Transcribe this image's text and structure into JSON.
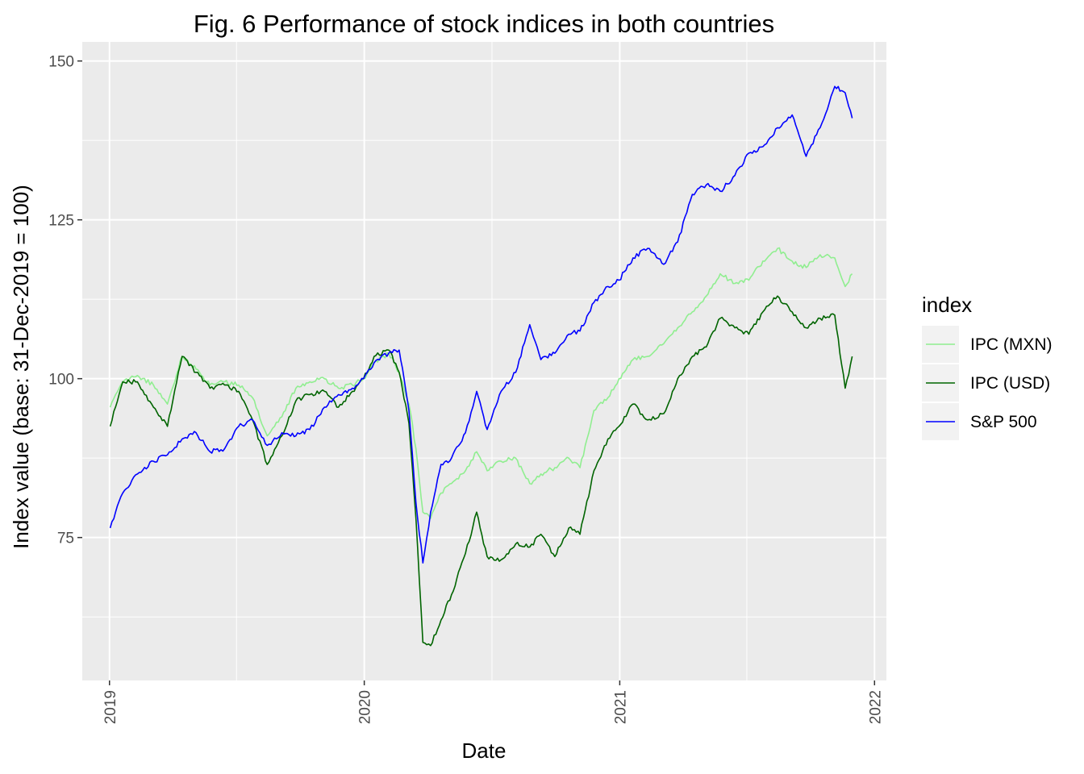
{
  "chart_data": {
    "type": "line",
    "title": "Fig. 6 Performance of stock indices in both countries",
    "xlabel": "Date",
    "ylabel": "Index value (base: 31-Dec-2019 = 100)",
    "x_ticks": [
      "2019",
      "2020",
      "2021",
      "2022"
    ],
    "y_ticks": [
      "75",
      "100",
      "125",
      "150"
    ],
    "xlim": [
      "2018-11-23",
      "2022-01-18"
    ],
    "ylim": [
      52.5,
      153.0
    ],
    "grid": true,
    "legend": {
      "title": "index",
      "position": "right"
    },
    "series": [
      {
        "name": "IPC (MXN)",
        "color": "#90EE90",
        "points": [
          [
            "2019-01-02",
            95.5
          ],
          [
            "2019-01-20",
            99.5
          ],
          [
            "2019-02-10",
            100.5
          ],
          [
            "2019-03-05",
            99.0
          ],
          [
            "2019-03-25",
            96.0
          ],
          [
            "2019-04-15",
            103.5
          ],
          [
            "2019-05-05",
            101.5
          ],
          [
            "2019-05-25",
            99.0
          ],
          [
            "2019-06-15",
            99.5
          ],
          [
            "2019-07-05",
            99.0
          ],
          [
            "2019-07-25",
            97.0
          ],
          [
            "2019-08-15",
            91.0
          ],
          [
            "2019-09-05",
            94.0
          ],
          [
            "2019-09-25",
            98.5
          ],
          [
            "2019-10-15",
            99.5
          ],
          [
            "2019-11-05",
            100.0
          ],
          [
            "2019-11-25",
            98.5
          ],
          [
            "2019-12-15",
            99.0
          ],
          [
            "2019-12-31",
            100.0
          ],
          [
            "2020-01-15",
            102.5
          ],
          [
            "2020-02-05",
            104.0
          ],
          [
            "2020-02-20",
            101.0
          ],
          [
            "2020-03-05",
            96.0
          ],
          [
            "2020-03-15",
            89.0
          ],
          [
            "2020-03-25",
            79.0
          ],
          [
            "2020-04-05",
            78.0
          ],
          [
            "2020-04-20",
            82.0
          ],
          [
            "2020-05-05",
            83.5
          ],
          [
            "2020-05-25",
            85.5
          ],
          [
            "2020-06-10",
            88.5
          ],
          [
            "2020-06-25",
            85.5
          ],
          [
            "2020-07-15",
            87.0
          ],
          [
            "2020-08-05",
            87.5
          ],
          [
            "2020-08-25",
            83.5
          ],
          [
            "2020-09-10",
            85.0
          ],
          [
            "2020-09-30",
            86.0
          ],
          [
            "2020-10-20",
            87.5
          ],
          [
            "2020-11-05",
            86.0
          ],
          [
            "2020-11-25",
            95.0
          ],
          [
            "2020-12-15",
            97.0
          ],
          [
            "2020-12-31",
            100.0
          ],
          [
            "2021-01-20",
            103.0
          ],
          [
            "2021-02-10",
            103.5
          ],
          [
            "2021-03-05",
            105.5
          ],
          [
            "2021-03-25",
            108.0
          ],
          [
            "2021-04-15",
            110.5
          ],
          [
            "2021-05-05",
            113.0
          ],
          [
            "2021-05-25",
            116.5
          ],
          [
            "2021-06-15",
            115.0
          ],
          [
            "2021-07-05",
            115.5
          ],
          [
            "2021-07-25",
            118.5
          ],
          [
            "2021-08-15",
            120.5
          ],
          [
            "2021-09-05",
            118.5
          ],
          [
            "2021-09-25",
            117.5
          ],
          [
            "2021-10-15",
            119.5
          ],
          [
            "2021-11-05",
            119.0
          ],
          [
            "2021-11-20",
            114.5
          ],
          [
            "2021-11-30",
            116.5
          ]
        ]
      },
      {
        "name": "IPC (USD)",
        "color": "#006400",
        "points": [
          [
            "2019-01-02",
            92.5
          ],
          [
            "2019-01-20",
            99.5
          ],
          [
            "2019-02-10",
            99.5
          ],
          [
            "2019-03-05",
            95.5
          ],
          [
            "2019-03-25",
            92.5
          ],
          [
            "2019-04-15",
            103.5
          ],
          [
            "2019-05-05",
            101.0
          ],
          [
            "2019-05-25",
            98.5
          ],
          [
            "2019-06-15",
            99.0
          ],
          [
            "2019-07-05",
            98.0
          ],
          [
            "2019-07-25",
            93.5
          ],
          [
            "2019-08-15",
            86.5
          ],
          [
            "2019-09-05",
            91.0
          ],
          [
            "2019-09-25",
            96.5
          ],
          [
            "2019-10-15",
            97.5
          ],
          [
            "2019-11-05",
            98.0
          ],
          [
            "2019-11-25",
            95.5
          ],
          [
            "2019-12-15",
            98.0
          ],
          [
            "2019-12-31",
            100.0
          ],
          [
            "2020-01-15",
            103.5
          ],
          [
            "2020-02-05",
            104.5
          ],
          [
            "2020-02-20",
            101.0
          ],
          [
            "2020-03-05",
            93.0
          ],
          [
            "2020-03-15",
            78.0
          ],
          [
            "2020-03-25",
            58.5
          ],
          [
            "2020-04-05",
            58.0
          ],
          [
            "2020-04-20",
            62.0
          ],
          [
            "2020-05-05",
            66.0
          ],
          [
            "2020-05-25",
            72.5
          ],
          [
            "2020-06-10",
            79.0
          ],
          [
            "2020-06-25",
            72.0
          ],
          [
            "2020-07-15",
            71.5
          ],
          [
            "2020-08-05",
            74.0
          ],
          [
            "2020-08-25",
            73.5
          ],
          [
            "2020-09-10",
            75.5
          ],
          [
            "2020-09-30",
            72.0
          ],
          [
            "2020-10-20",
            76.5
          ],
          [
            "2020-11-05",
            75.5
          ],
          [
            "2020-11-25",
            85.5
          ],
          [
            "2020-12-15",
            90.5
          ],
          [
            "2020-12-31",
            92.5
          ],
          [
            "2021-01-20",
            96.0
          ],
          [
            "2021-02-10",
            93.5
          ],
          [
            "2021-03-05",
            94.5
          ],
          [
            "2021-03-25",
            100.0
          ],
          [
            "2021-04-15",
            103.5
          ],
          [
            "2021-05-05",
            105.0
          ],
          [
            "2021-05-25",
            109.5
          ],
          [
            "2021-06-15",
            108.0
          ],
          [
            "2021-07-05",
            107.0
          ],
          [
            "2021-07-25",
            110.5
          ],
          [
            "2021-08-15",
            113.0
          ],
          [
            "2021-09-05",
            110.5
          ],
          [
            "2021-09-25",
            108.0
          ],
          [
            "2021-10-15",
            109.5
          ],
          [
            "2021-11-05",
            110.0
          ],
          [
            "2021-11-20",
            98.5
          ],
          [
            "2021-11-30",
            103.5
          ]
        ]
      },
      {
        "name": "S&P 500",
        "color": "#0000FF",
        "points": [
          [
            "2019-01-02",
            76.5
          ],
          [
            "2019-01-20",
            82.0
          ],
          [
            "2019-02-10",
            85.0
          ],
          [
            "2019-03-05",
            87.0
          ],
          [
            "2019-03-25",
            88.0
          ],
          [
            "2019-04-15",
            90.5
          ],
          [
            "2019-05-05",
            91.5
          ],
          [
            "2019-05-25",
            88.5
          ],
          [
            "2019-06-15",
            89.0
          ],
          [
            "2019-07-05",
            92.5
          ],
          [
            "2019-07-25",
            93.5
          ],
          [
            "2019-08-15",
            89.5
          ],
          [
            "2019-09-05",
            91.5
          ],
          [
            "2019-09-25",
            91.0
          ],
          [
            "2019-10-15",
            92.0
          ],
          [
            "2019-11-05",
            95.5
          ],
          [
            "2019-11-25",
            97.5
          ],
          [
            "2019-12-15",
            98.5
          ],
          [
            "2019-12-31",
            100.0
          ],
          [
            "2020-01-15",
            102.5
          ],
          [
            "2020-02-05",
            104.0
          ],
          [
            "2020-02-20",
            104.5
          ],
          [
            "2020-03-05",
            95.0
          ],
          [
            "2020-03-15",
            80.5
          ],
          [
            "2020-03-25",
            71.0
          ],
          [
            "2020-04-05",
            79.0
          ],
          [
            "2020-04-20",
            86.5
          ],
          [
            "2020-05-05",
            87.5
          ],
          [
            "2020-05-25",
            91.5
          ],
          [
            "2020-06-10",
            98.0
          ],
          [
            "2020-06-25",
            92.0
          ],
          [
            "2020-07-15",
            98.0
          ],
          [
            "2020-08-05",
            101.0
          ],
          [
            "2020-08-25",
            108.5
          ],
          [
            "2020-09-10",
            103.0
          ],
          [
            "2020-09-30",
            104.0
          ],
          [
            "2020-10-20",
            107.0
          ],
          [
            "2020-11-05",
            107.5
          ],
          [
            "2020-11-25",
            112.0
          ],
          [
            "2020-12-15",
            114.5
          ],
          [
            "2020-12-31",
            115.5
          ],
          [
            "2021-01-20",
            119.0
          ],
          [
            "2021-02-10",
            120.5
          ],
          [
            "2021-03-05",
            118.0
          ],
          [
            "2021-03-25",
            121.5
          ],
          [
            "2021-04-15",
            129.0
          ],
          [
            "2021-05-05",
            130.5
          ],
          [
            "2021-05-25",
            129.5
          ],
          [
            "2021-06-15",
            132.0
          ],
          [
            "2021-07-05",
            135.5
          ],
          [
            "2021-07-25",
            136.5
          ],
          [
            "2021-08-15",
            139.5
          ],
          [
            "2021-09-05",
            141.5
          ],
          [
            "2021-09-25",
            135.0
          ],
          [
            "2021-10-15",
            139.5
          ],
          [
            "2021-11-05",
            146.0
          ],
          [
            "2021-11-20",
            145.0
          ],
          [
            "2021-11-30",
            141.0
          ]
        ]
      }
    ]
  }
}
